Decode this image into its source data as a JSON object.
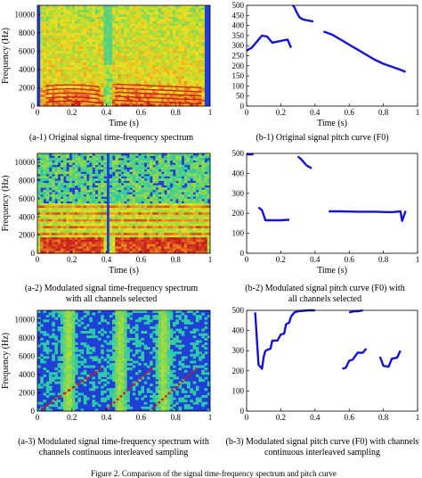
{
  "figure_caption": "Figure 2. Comparison of the signal time-frequency spectrum and pitch curve",
  "colors": {
    "spectrum_low": "#1f3fd6",
    "spectrum_mid": "#22c8b4",
    "spectrum_high": "#f0e020",
    "spectrum_peak": "#c81e1e",
    "pitch_line": "#1414d2"
  },
  "panels": [
    {
      "id": "a-1",
      "caption": "(a-1) Original signal time-frequency spectrum",
      "chart_data": {
        "type": "heatmap",
        "xlabel": "Time (s)",
        "ylabel": "Frequency (Hz)",
        "xlim": [
          0,
          1
        ],
        "ylim": [
          0,
          11000
        ],
        "x_ticks": [
          "0",
          "0.2",
          "0.4",
          "0.6",
          "0.8",
          "1"
        ],
        "y_ticks": [
          "0",
          "2000",
          "4000",
          "6000",
          "8000",
          "10000"
        ]
      }
    },
    {
      "id": "b-1",
      "caption": "(b-1) Original signal pitch curve (F0)",
      "chart_data": {
        "type": "line",
        "xlabel": "Time (s)",
        "ylabel": "",
        "xlim": [
          0,
          1
        ],
        "ylim": [
          0,
          500
        ],
        "x_ticks": [
          "0",
          "0.2",
          "0.4",
          "0.6",
          "0.8",
          "1"
        ],
        "y_ticks": [
          "0",
          "50",
          "100",
          "150",
          "200",
          "250",
          "300",
          "350",
          "400",
          "450",
          "500"
        ],
        "segments": [
          {
            "x": [
              0.0,
              0.03,
              0.06,
              0.09,
              0.12,
              0.15,
              0.18,
              0.21,
              0.24,
              0.26
            ],
            "y": [
              275,
              290,
              320,
              350,
              345,
              315,
              320,
              325,
              330,
              290
            ]
          },
          {
            "x": [
              0.27,
              0.28,
              0.29,
              0.31,
              0.33,
              0.36,
              0.39
            ],
            "y": [
              500,
              490,
              470,
              440,
              430,
              425,
              420
            ]
          },
          {
            "x": [
              0.45,
              0.5,
              0.55,
              0.6,
              0.65,
              0.7,
              0.75,
              0.8,
              0.85,
              0.9,
              0.93
            ],
            "y": [
              370,
              355,
              330,
              305,
              280,
              255,
              230,
              210,
              195,
              180,
              170
            ]
          }
        ]
      }
    },
    {
      "id": "a-2",
      "caption": "(a-2) Modulated signal time-frequency spectrum with all channels selected",
      "chart_data": {
        "type": "heatmap",
        "xlabel": "Time (s)",
        "ylabel": "Frequency (Hz)",
        "xlim": [
          0,
          1
        ],
        "ylim": [
          0,
          11000
        ],
        "x_ticks": [
          "0",
          "0.2",
          "0.4",
          "0.6",
          "0.8",
          "1"
        ],
        "y_ticks": [
          "0",
          "2000",
          "4000",
          "6000",
          "8000",
          "10000"
        ]
      }
    },
    {
      "id": "b-2",
      "caption": "(b-2) Modulated signal pitch curve (F0) with all channels selected",
      "chart_data": {
        "type": "line",
        "xlabel": "Time (s)",
        "ylabel": "",
        "xlim": [
          0,
          1
        ],
        "ylim": [
          0,
          500
        ],
        "x_ticks": [
          "0",
          "0.2",
          "0.4",
          "0.6",
          "0.8",
          "1"
        ],
        "y_ticks": [
          "0",
          "100",
          "200",
          "300",
          "400",
          "500"
        ],
        "segments": [
          {
            "x": [
              0.0,
              0.04
            ],
            "y": [
              495,
              495
            ]
          },
          {
            "x": [
              0.07,
              0.09,
              0.11,
              0.15,
              0.2,
              0.25
            ],
            "y": [
              230,
              215,
              165,
              165,
              165,
              168
            ]
          },
          {
            "x": [
              0.3,
              0.32,
              0.35,
              0.38
            ],
            "y": [
              485,
              470,
              440,
              425
            ]
          },
          {
            "x": [
              0.48,
              0.55,
              0.65,
              0.75,
              0.85,
              0.9,
              0.91,
              0.93
            ],
            "y": [
              210,
              210,
              208,
              208,
              206,
              210,
              162,
              212
            ]
          }
        ]
      }
    },
    {
      "id": "a-3",
      "caption": "(a-3) Modulated signal time-frequency spectrum with channels continuous interleaved sampling",
      "chart_data": {
        "type": "heatmap",
        "xlabel": "",
        "ylabel": "Frequency (Hz)",
        "xlim": [
          0,
          1
        ],
        "ylim": [
          0,
          11000
        ],
        "x_ticks": [
          "0",
          "0.2",
          "0.4",
          "0.6",
          "0.8",
          "1"
        ],
        "y_ticks": [
          "0",
          "2000",
          "4000",
          "6000",
          "8000",
          "10000"
        ]
      }
    },
    {
      "id": "b-3",
      "caption": "(b-3) Modulated signal pitch curve (F0) with channels continuous interleaved sampling",
      "chart_data": {
        "type": "line",
        "xlabel": "",
        "ylabel": "",
        "xlim": [
          0,
          1
        ],
        "ylim": [
          0,
          500
        ],
        "x_ticks": [
          "0",
          "0.2",
          "0.4",
          "0.6",
          "0.8",
          "1"
        ],
        "y_ticks": [
          "0",
          "100",
          "200",
          "300",
          "400",
          "500"
        ],
        "segments": [
          {
            "x": [
              0.05,
              0.07,
              0.09,
              0.1,
              0.11
            ],
            "y": [
              490,
              230,
              210,
              270,
              300
            ]
          },
          {
            "x": [
              0.11,
              0.14,
              0.15,
              0.18,
              0.2,
              0.22,
              0.23,
              0.25,
              0.26
            ],
            "y": [
              300,
              310,
              350,
              350,
              380,
              385,
              430,
              440,
              470
            ]
          },
          {
            "x": [
              0.26,
              0.28,
              0.3,
              0.33,
              0.36,
              0.4
            ],
            "y": [
              470,
              490,
              495,
              498,
              500,
              500
            ]
          },
          {
            "x": [
              0.6,
              0.63,
              0.65,
              0.68
            ],
            "y": [
              490,
              495,
              495,
              500
            ]
          },
          {
            "x": [
              0.56,
              0.58,
              0.6,
              0.62,
              0.65,
              0.68,
              0.7
            ],
            "y": [
              210,
              215,
              250,
              255,
              290,
              290,
              310
            ]
          },
          {
            "x": [
              0.78,
              0.8,
              0.83,
              0.85,
              0.88,
              0.9
            ],
            "y": [
              270,
              225,
              220,
              260,
              265,
              300
            ]
          }
        ]
      }
    }
  ]
}
